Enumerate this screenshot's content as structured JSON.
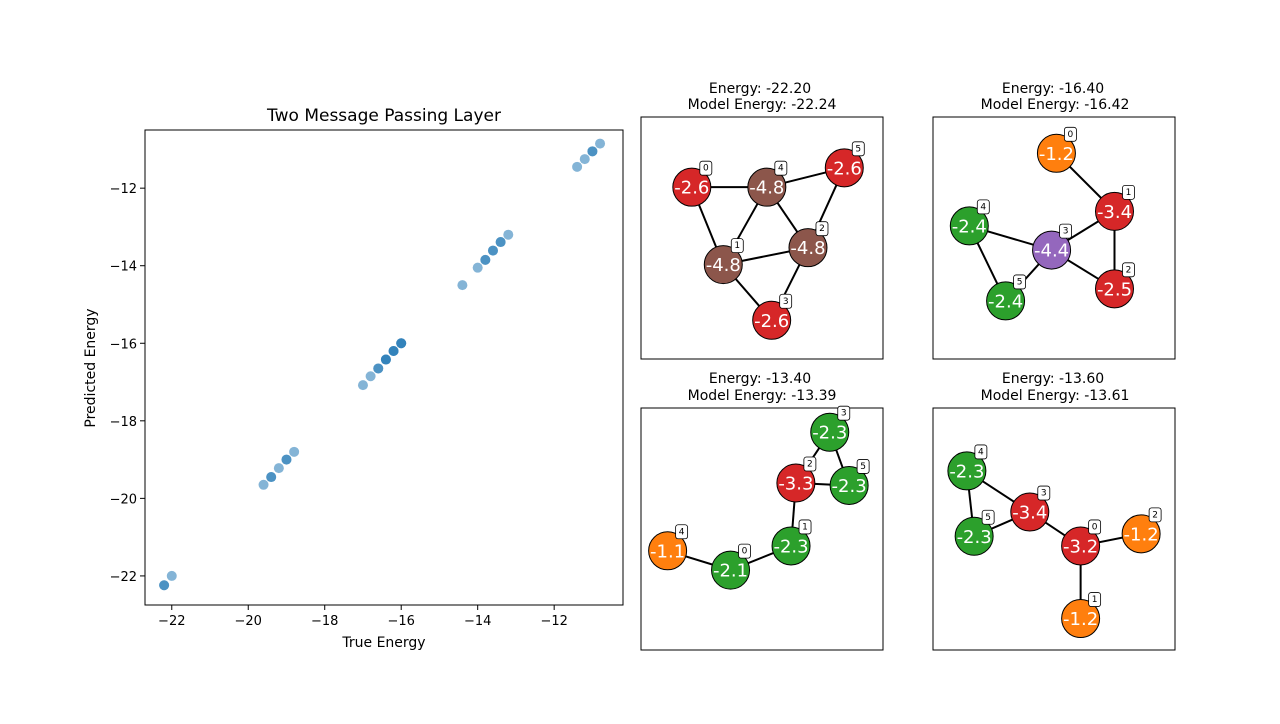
{
  "chart_data": [
    {
      "type": "scatter",
      "title": "Two Message Passing Layer",
      "xlabel": "True Energy",
      "ylabel": "Predicted Energy",
      "xlim": [
        -22.7,
        -10.2
      ],
      "ylim": [
        -22.75,
        -10.5
      ],
      "xticks": [
        -22,
        -20,
        -18,
        -16,
        -14,
        -12
      ],
      "yticks": [
        -22,
        -20,
        -18,
        -16,
        -14,
        -12
      ],
      "tick_labels_x": [
        "−22",
        "−20",
        "−18",
        "−16",
        "−14",
        "−12"
      ],
      "tick_labels_y": [
        "−22",
        "−20",
        "−18",
        "−16",
        "−14",
        "−12"
      ],
      "color": "#1f77b4",
      "point_alpha": 0.55,
      "grid": false,
      "points": [
        {
          "x": -22.2,
          "y": -22.24
        },
        {
          "x": -22.2,
          "y": -22.24
        },
        {
          "x": -22.0,
          "y": -22.0
        },
        {
          "x": -19.6,
          "y": -19.65
        },
        {
          "x": -19.4,
          "y": -19.45
        },
        {
          "x": -19.4,
          "y": -19.45
        },
        {
          "x": -19.2,
          "y": -19.22
        },
        {
          "x": -19.0,
          "y": -19.0
        },
        {
          "x": -19.0,
          "y": -19.0
        },
        {
          "x": -18.8,
          "y": -18.8
        },
        {
          "x": -17.0,
          "y": -17.08
        },
        {
          "x": -16.8,
          "y": -16.85
        },
        {
          "x": -16.6,
          "y": -16.65
        },
        {
          "x": -16.6,
          "y": -16.65
        },
        {
          "x": -16.4,
          "y": -16.42
        },
        {
          "x": -16.4,
          "y": -16.42
        },
        {
          "x": -16.4,
          "y": -16.42
        },
        {
          "x": -16.2,
          "y": -16.2
        },
        {
          "x": -16.2,
          "y": -16.2
        },
        {
          "x": -16.2,
          "y": -16.2
        },
        {
          "x": -16.0,
          "y": -16.0
        },
        {
          "x": -16.0,
          "y": -16.0
        },
        {
          "x": -16.0,
          "y": -16.0
        },
        {
          "x": -14.4,
          "y": -14.5
        },
        {
          "x": -14.0,
          "y": -14.05
        },
        {
          "x": -13.8,
          "y": -13.85
        },
        {
          "x": -13.8,
          "y": -13.85
        },
        {
          "x": -13.6,
          "y": -13.61
        },
        {
          "x": -13.6,
          "y": -13.61
        },
        {
          "x": -13.4,
          "y": -13.39
        },
        {
          "x": -13.4,
          "y": -13.39
        },
        {
          "x": -13.2,
          "y": -13.2
        },
        {
          "x": -11.4,
          "y": -11.45
        },
        {
          "x": -11.2,
          "y": -11.25
        },
        {
          "x": -11.0,
          "y": -11.05
        },
        {
          "x": -11.0,
          "y": -11.05
        },
        {
          "x": -10.8,
          "y": -10.85
        }
      ]
    },
    {
      "type": "graph",
      "title_line1": "Energy: -22.20",
      "title_line2": "Model Energy: -22.24",
      "nodes": [
        {
          "id": "0",
          "label": "-2.6",
          "color": "#d62728",
          "pos": [
            0.21,
            0.29
          ]
        },
        {
          "id": "1",
          "label": "-4.8",
          "color": "#8c564b",
          "pos": [
            0.34,
            0.61
          ]
        },
        {
          "id": "2",
          "label": "-4.8",
          "color": "#8c564b",
          "pos": [
            0.69,
            0.54
          ]
        },
        {
          "id": "3",
          "label": "-2.6",
          "color": "#d62728",
          "pos": [
            0.54,
            0.84
          ]
        },
        {
          "id": "4",
          "label": "-4.8",
          "color": "#8c564b",
          "pos": [
            0.52,
            0.29
          ]
        },
        {
          "id": "5",
          "label": "-2.6",
          "color": "#d62728",
          "pos": [
            0.84,
            0.21
          ]
        }
      ],
      "edges": [
        [
          "0",
          "4"
        ],
        [
          "0",
          "1"
        ],
        [
          "4",
          "5"
        ],
        [
          "4",
          "1"
        ],
        [
          "4",
          "2"
        ],
        [
          "5",
          "2"
        ],
        [
          "1",
          "2"
        ],
        [
          "1",
          "3"
        ],
        [
          "2",
          "3"
        ]
      ]
    },
    {
      "type": "graph",
      "title_line1": "Energy: -16.40",
      "title_line2": "Model Energy: -16.42",
      "nodes": [
        {
          "id": "0",
          "label": "-1.2",
          "color": "#ff7f0e",
          "pos": [
            0.51,
            0.15
          ]
        },
        {
          "id": "1",
          "label": "-3.4",
          "color": "#d62728",
          "pos": [
            0.75,
            0.39
          ]
        },
        {
          "id": "2",
          "label": "-2.5",
          "color": "#d62728",
          "pos": [
            0.75,
            0.71
          ]
        },
        {
          "id": "3",
          "label": "-4.4",
          "color": "#9467bd",
          "pos": [
            0.49,
            0.55
          ]
        },
        {
          "id": "4",
          "label": "-2.4",
          "color": "#2ca02c",
          "pos": [
            0.15,
            0.45
          ]
        },
        {
          "id": "5",
          "label": "-2.4",
          "color": "#2ca02c",
          "pos": [
            0.3,
            0.76
          ]
        }
      ],
      "edges": [
        [
          "0",
          "1"
        ],
        [
          "1",
          "3"
        ],
        [
          "1",
          "2"
        ],
        [
          "3",
          "2"
        ],
        [
          "3",
          "4"
        ],
        [
          "4",
          "5"
        ],
        [
          "3",
          "5"
        ]
      ]
    },
    {
      "type": "graph",
      "title_line1": "Energy: -13.40",
      "title_line2": "Model Energy: -13.39",
      "nodes": [
        {
          "id": "0",
          "label": "-2.1",
          "color": "#2ca02c",
          "pos": [
            0.37,
            0.67
          ]
        },
        {
          "id": "1",
          "label": "-2.3",
          "color": "#2ca02c",
          "pos": [
            0.62,
            0.57
          ]
        },
        {
          "id": "2",
          "label": "-3.3",
          "color": "#d62728",
          "pos": [
            0.64,
            0.31
          ]
        },
        {
          "id": "3",
          "label": "-2.3",
          "color": "#2ca02c",
          "pos": [
            0.78,
            0.1
          ]
        },
        {
          "id": "4",
          "label": "-1.1",
          "color": "#ff7f0e",
          "pos": [
            0.11,
            0.59
          ]
        },
        {
          "id": "5",
          "label": "-2.3",
          "color": "#2ca02c",
          "pos": [
            0.86,
            0.32
          ]
        }
      ],
      "edges": [
        [
          "4",
          "0"
        ],
        [
          "0",
          "1"
        ],
        [
          "1",
          "2"
        ],
        [
          "2",
          "3"
        ],
        [
          "2",
          "5"
        ],
        [
          "3",
          "5"
        ]
      ]
    },
    {
      "type": "graph",
      "title_line1": "Energy: -13.60",
      "title_line2": "Model Energy: -13.61",
      "nodes": [
        {
          "id": "0",
          "label": "-3.2",
          "color": "#d62728",
          "pos": [
            0.61,
            0.57
          ]
        },
        {
          "id": "1",
          "label": "-1.2",
          "color": "#ff7f0e",
          "pos": [
            0.61,
            0.87
          ]
        },
        {
          "id": "2",
          "label": "-1.2",
          "color": "#ff7f0e",
          "pos": [
            0.86,
            0.52
          ]
        },
        {
          "id": "3",
          "label": "-3.4",
          "color": "#d62728",
          "pos": [
            0.4,
            0.43
          ]
        },
        {
          "id": "4",
          "label": "-2.3",
          "color": "#2ca02c",
          "pos": [
            0.14,
            0.26
          ]
        },
        {
          "id": "5",
          "label": "-2.3",
          "color": "#2ca02c",
          "pos": [
            0.17,
            0.53
          ]
        }
      ],
      "edges": [
        [
          "4",
          "3"
        ],
        [
          "4",
          "5"
        ],
        [
          "5",
          "3"
        ],
        [
          "3",
          "0"
        ],
        [
          "0",
          "2"
        ],
        [
          "0",
          "1"
        ]
      ]
    }
  ]
}
